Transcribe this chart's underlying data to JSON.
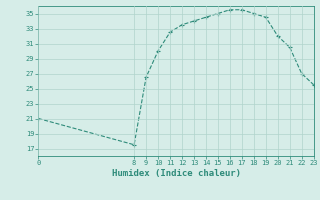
{
  "x": [
    0,
    8,
    9,
    10,
    11,
    12,
    13,
    14,
    15,
    16,
    17,
    18,
    19,
    20,
    21,
    22,
    23
  ],
  "y": [
    21,
    17.5,
    26.5,
    30.0,
    32.5,
    33.5,
    34.0,
    34.5,
    35.0,
    35.5,
    35.5,
    35.0,
    34.5,
    32.0,
    30.5,
    27.0,
    25.5
  ],
  "line_color": "#2e8b7a",
  "bg_color": "#d6ede8",
  "grid_color": "#b0d4cc",
  "xlabel": "Humidex (Indice chaleur)",
  "ylim": [
    16,
    36
  ],
  "xlim": [
    0,
    23
  ],
  "yticks": [
    17,
    19,
    21,
    23,
    25,
    27,
    29,
    31,
    33,
    35
  ],
  "xticks": [
    0,
    8,
    9,
    10,
    11,
    12,
    13,
    14,
    15,
    16,
    17,
    18,
    19,
    20,
    21,
    22,
    23
  ],
  "tick_fontsize": 5,
  "xlabel_fontsize": 6.5
}
